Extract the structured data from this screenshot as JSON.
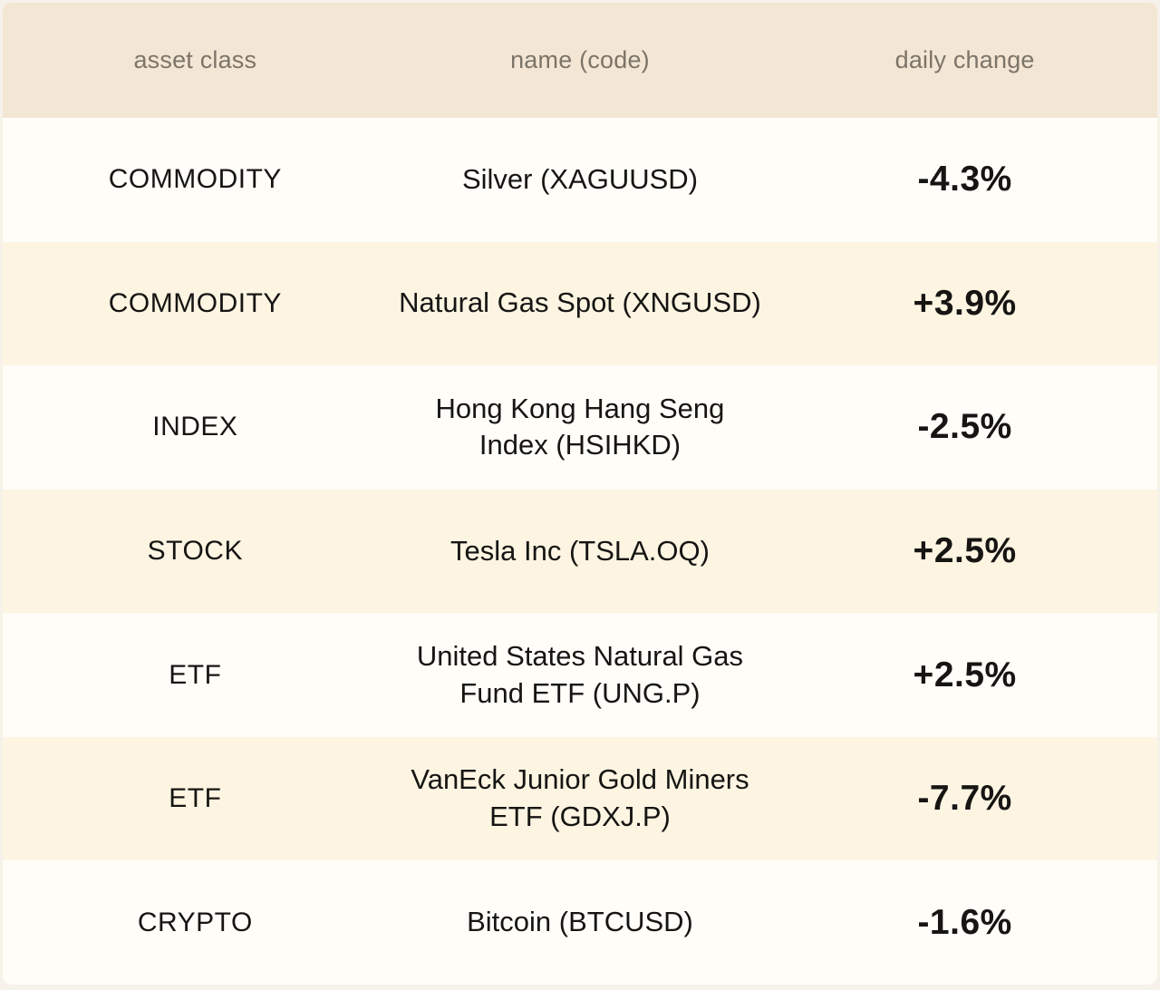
{
  "table": {
    "columns": [
      {
        "label": "asset class"
      },
      {
        "label": "name (code)"
      },
      {
        "label": "daily change"
      }
    ],
    "rows": [
      {
        "asset_class": "COMMODITY",
        "name_lines": [
          "Silver (XAGUUSD)"
        ],
        "daily_change": "-4.3%"
      },
      {
        "asset_class": "COMMODITY",
        "name_lines": [
          "Natural Gas Spot (XNGUSD)"
        ],
        "daily_change": "+3.9%"
      },
      {
        "asset_class": "INDEX",
        "name_lines": [
          "Hong Kong Hang Seng",
          "Index (HSIHKD)"
        ],
        "daily_change": "-2.5%"
      },
      {
        "asset_class": "STOCK",
        "name_lines": [
          "Tesla Inc (TSLA.OQ)"
        ],
        "daily_change": "+2.5%"
      },
      {
        "asset_class": "ETF",
        "name_lines": [
          "United States Natural Gas",
          "Fund ETF (UNG.P)"
        ],
        "daily_change": "+2.5%"
      },
      {
        "asset_class": "ETF",
        "name_lines": [
          "VanEck Junior Gold Miners",
          "ETF (GDXJ.P)"
        ],
        "daily_change": "-7.7%"
      },
      {
        "asset_class": "CRYPTO",
        "name_lines": [
          "Bitcoin (BTCUSD)"
        ],
        "daily_change": "-1.6%"
      }
    ]
  },
  "colors": {
    "header_bg": "#f4e6d4",
    "row_bg": "#fffdf8",
    "row_alt_bg": "#fdf5e2",
    "header_text": "#7b7468",
    "data_text": "#161513",
    "page_bg": "#f6f2ea"
  },
  "chart_data": {
    "type": "table",
    "title": "",
    "columns": [
      "asset class",
      "name (code)",
      "daily change"
    ],
    "rows": [
      [
        "COMMODITY",
        "Silver (XAGUUSD)",
        "-4.3%"
      ],
      [
        "COMMODITY",
        "Natural Gas Spot (XNGUSD)",
        "+3.9%"
      ],
      [
        "INDEX",
        "Hong Kong Hang Seng Index (HSIHKD)",
        "-2.5%"
      ],
      [
        "STOCK",
        "Tesla Inc (TSLA.OQ)",
        "+2.5%"
      ],
      [
        "ETF",
        "United States Natural Gas Fund ETF (UNG.P)",
        "+2.5%"
      ],
      [
        "ETF",
        "VanEck Junior Gold Miners ETF (GDXJ.P)",
        "-7.7%"
      ],
      [
        "CRYPTO",
        "Bitcoin (BTCUSD)",
        "-1.6%"
      ]
    ],
    "daily_change_values_pct": [
      -4.3,
      3.9,
      -2.5,
      2.5,
      2.5,
      -7.7,
      -1.6
    ],
    "layout": {
      "header_background": "#f4e6d4",
      "zebra_striping": true,
      "text_align": "center"
    }
  }
}
